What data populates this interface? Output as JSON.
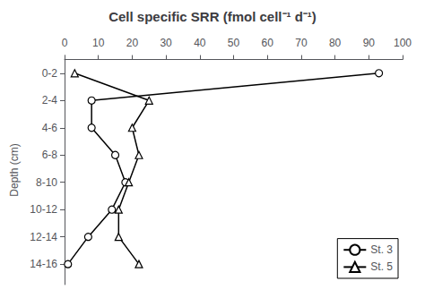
{
  "chart_data": {
    "type": "line",
    "title": "Cell specific SRR (fmol cell⁻¹ d⁻¹)",
    "ylabel": "Depth (cm)",
    "xlim": [
      0,
      100
    ],
    "xticks": [
      0,
      10,
      20,
      30,
      40,
      50,
      60,
      70,
      80,
      90,
      100
    ],
    "ylim": [
      16.5,
      -0.3
    ],
    "yticks": [
      {
        "value": 1,
        "label": "0-2"
      },
      {
        "value": 3,
        "label": "2-4"
      },
      {
        "value": 5,
        "label": "4-6"
      },
      {
        "value": 7,
        "label": "6-8"
      },
      {
        "value": 9,
        "label": "8-10"
      },
      {
        "value": 11,
        "label": "10-12"
      },
      {
        "value": 13,
        "label": "12-14"
      },
      {
        "value": 15,
        "label": "14-16"
      }
    ],
    "series": [
      {
        "name": "St. 3",
        "color": "#000000",
        "marker": "circle",
        "x": [
          93,
          8,
          8,
          15,
          18,
          14,
          7,
          1
        ],
        "values": [
          1,
          3,
          5,
          7,
          9,
          11,
          13,
          15
        ]
      },
      {
        "name": "St. 5",
        "color": "#000000",
        "marker": "triangle",
        "x": [
          3,
          25,
          20,
          22,
          19,
          16,
          16,
          22
        ],
        "values": [
          1,
          3,
          5,
          7,
          9,
          11,
          13,
          15
        ]
      }
    ],
    "legend": "lower right",
    "grid": false
  }
}
